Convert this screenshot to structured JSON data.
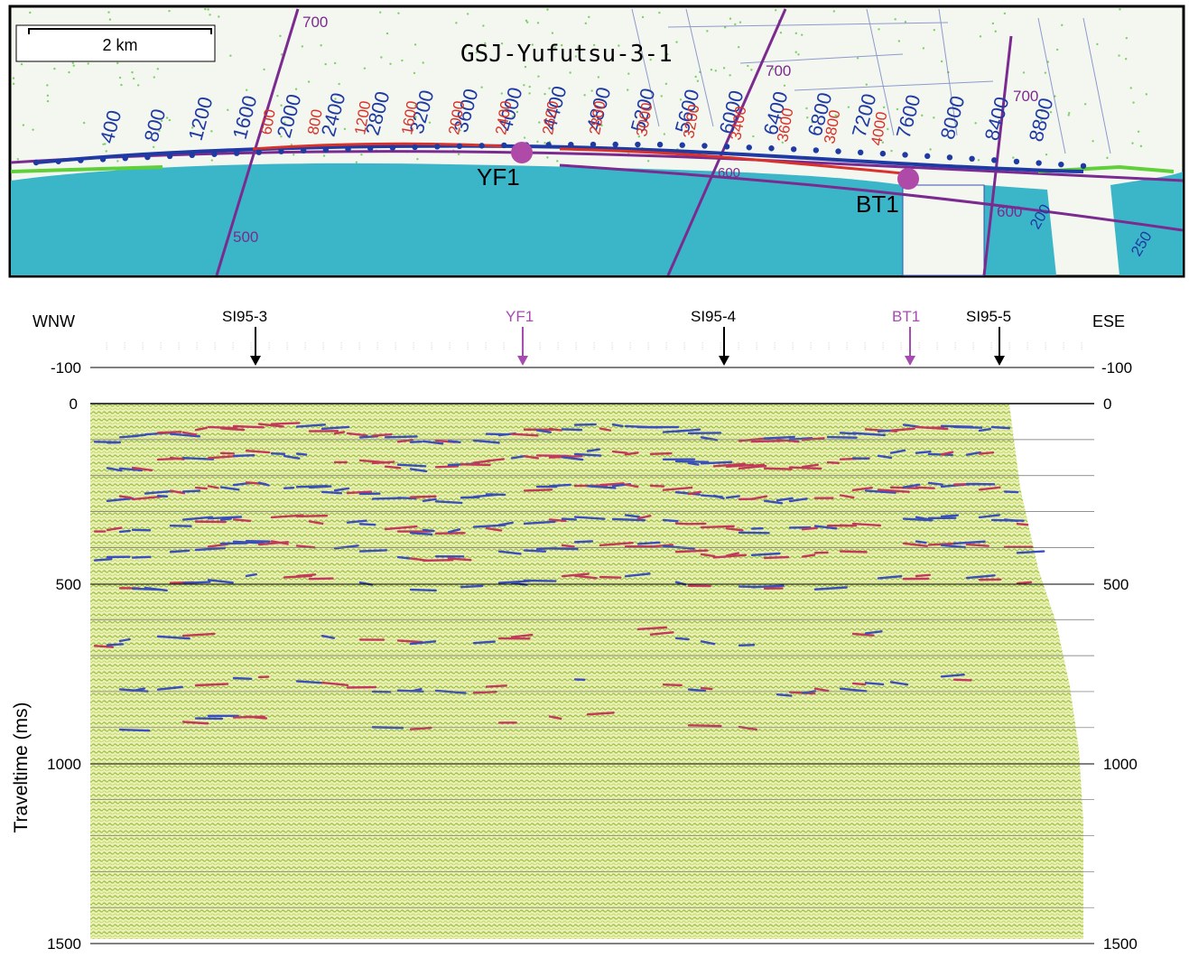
{
  "map": {
    "title": "GSJ-Yufutsu-3-1",
    "scale_label": "2 km",
    "well_labels": [
      "YF1",
      "BT1"
    ],
    "line_numbers_blue": [
      "400",
      "800",
      "1200",
      "1600",
      "2000",
      "2400",
      "2800",
      "3200",
      "3600",
      "4000",
      "4400",
      "4800",
      "5200",
      "5600",
      "6000",
      "6400",
      "6800",
      "7200",
      "7600",
      "8000",
      "8400",
      "8800"
    ],
    "line_numbers_red": [
      "600",
      "800",
      "1200",
      "1600",
      "2000",
      "2400",
      "2600",
      "2800",
      "3000",
      "3200",
      "3400",
      "3600",
      "3800",
      "4000"
    ],
    "crossline_labels": [
      "700",
      "500",
      "700",
      "600",
      "700",
      "600",
      "200",
      "250"
    ],
    "colors": {
      "sea": "#3bb6c9",
      "land": "#f4f7f0",
      "road_purple": "#7b2a8f",
      "profile_blue": "#1f3aa3",
      "profile_red": "#d9322a",
      "line_green": "#5fcf3a",
      "well_marker": "#b04aa8"
    }
  },
  "section": {
    "left_label": "WNW",
    "right_label": "ESE",
    "markers": [
      {
        "label": "SI95-3",
        "color": "#000000"
      },
      {
        "label": "YF1",
        "color": "#a64bb0"
      },
      {
        "label": "SI95-4",
        "color": "#000000"
      },
      {
        "label": "BT1",
        "color": "#a64bb0"
      },
      {
        "label": "SI95-5",
        "color": "#000000"
      }
    ],
    "y_axis_label": "Traveltime (ms)",
    "ticks_left": [
      "-100",
      "0",
      "500",
      "1000",
      "1500"
    ],
    "ticks_right": [
      "-100",
      "0",
      "500",
      "1000",
      "1500"
    ]
  }
}
